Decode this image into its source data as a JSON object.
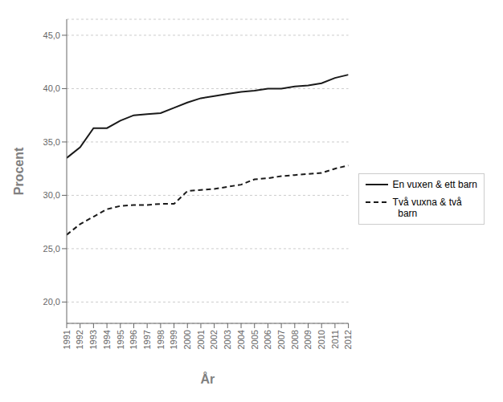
{
  "chart_data": {
    "type": "line",
    "xlabel": "År",
    "ylabel": "Procent",
    "x": [
      1991,
      1992,
      1993,
      1994,
      1995,
      1996,
      1997,
      1998,
      1999,
      2000,
      2001,
      2002,
      2003,
      2004,
      2005,
      2006,
      2007,
      2008,
      2009,
      2010,
      2011,
      2012
    ],
    "series": [
      {
        "name": "En vuxen & ett barn",
        "color": "#1a1a1a",
        "line_style": "solid",
        "values": [
          33.5,
          34.5,
          36.3,
          36.3,
          37.0,
          37.5,
          37.6,
          37.7,
          38.2,
          38.7,
          39.1,
          39.3,
          39.5,
          39.7,
          39.8,
          40.0,
          40.0,
          40.2,
          40.3,
          40.5,
          41.0,
          41.3
        ]
      },
      {
        "name": "Två vuxna & två\n  barn",
        "color": "#1a1a1a",
        "line_style": "dashed",
        "values": [
          26.3,
          27.3,
          28.0,
          28.7,
          29.0,
          29.1,
          29.1,
          29.2,
          29.2,
          30.4,
          30.5,
          30.6,
          30.8,
          31.0,
          31.5,
          31.6,
          31.8,
          31.9,
          32.0,
          32.1,
          32.5,
          32.8
        ]
      }
    ],
    "xlim": [
      1991,
      2012
    ],
    "xticks": [
      1991,
      1992,
      1993,
      1994,
      1995,
      1996,
      1997,
      1998,
      1999,
      2000,
      2001,
      2002,
      2003,
      2004,
      2005,
      2006,
      2007,
      2008,
      2009,
      2010,
      2011,
      2012
    ],
    "ylim": [
      18.0,
      46.5
    ],
    "yticks": [
      {
        "value": 20.0,
        "label": "20,0"
      },
      {
        "value": 25.0,
        "label": "25,0"
      },
      {
        "value": 30.0,
        "label": "30,0"
      },
      {
        "value": 35.0,
        "label": "35,0"
      },
      {
        "value": 40.0,
        "label": "40,0"
      },
      {
        "value": 45.0,
        "label": "45,0"
      }
    ],
    "grid": "y",
    "legend": "right"
  }
}
